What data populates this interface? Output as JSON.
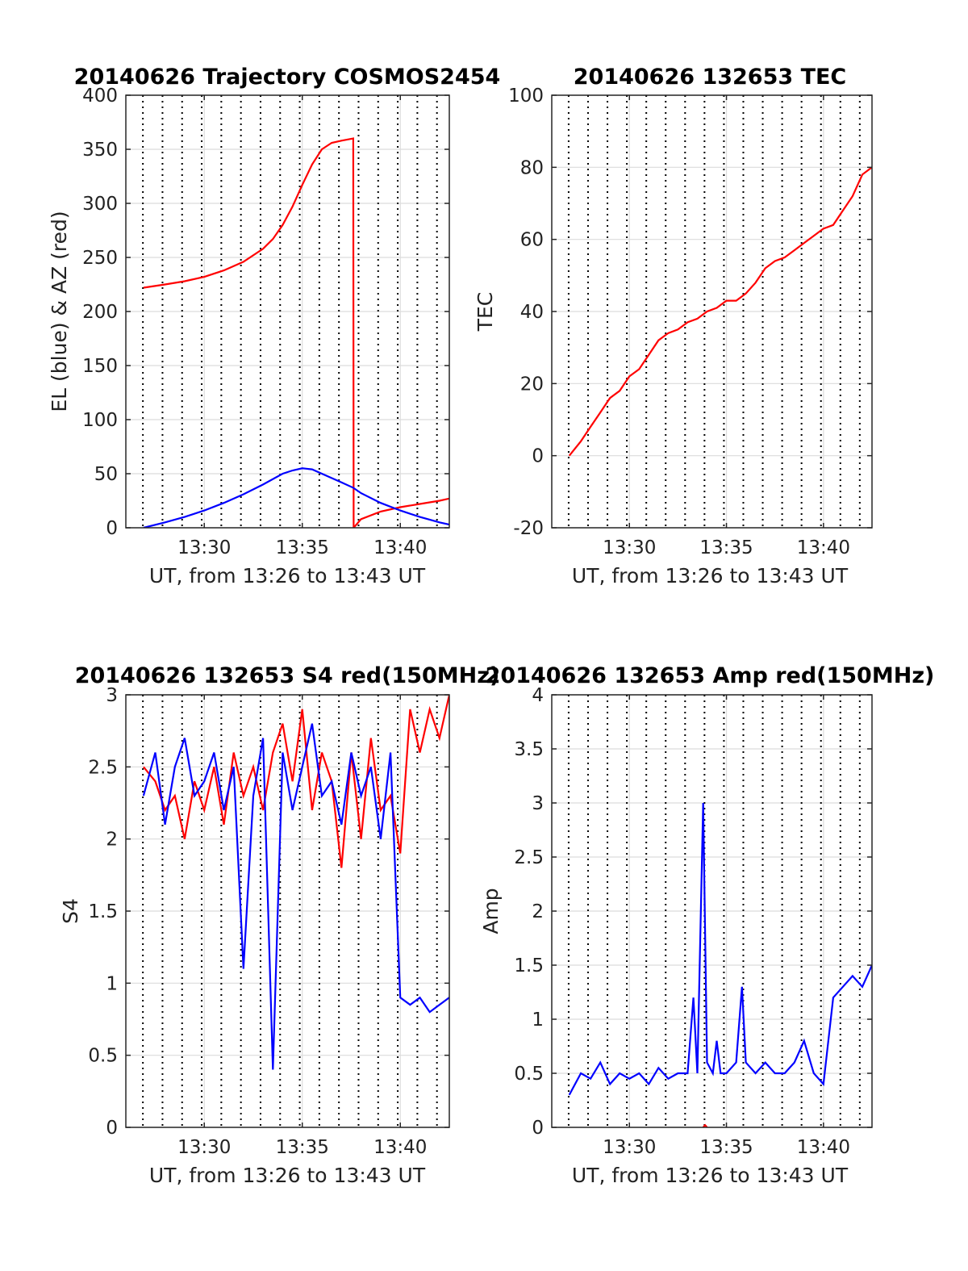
{
  "colors": {
    "red": "#ff0000",
    "blue": "#0000ff",
    "grid": "#dcdcdc",
    "vgrid": "#000000",
    "axis": "#262626"
  },
  "chart_data": [
    {
      "type": "line",
      "title": "20140626 Trajectory COSMOS2454",
      "xlabel": "UT, from 13:26 to 13:43 UT",
      "ylabel": "EL (blue) & AZ (red)",
      "xlim": [
        13.0,
        29.5
      ],
      "ylim": [
        0,
        400
      ],
      "xticks": [
        {
          "value": 17,
          "label": "13:30"
        },
        {
          "value": 22,
          "label": "13:35"
        },
        {
          "value": 27,
          "label": "13:40"
        }
      ],
      "yticks": [
        {
          "value": 0,
          "label": "0"
        },
        {
          "value": 50,
          "label": "50"
        },
        {
          "value": 100,
          "label": "100"
        },
        {
          "value": 150,
          "label": "150"
        },
        {
          "value": 200,
          "label": "200"
        },
        {
          "value": 250,
          "label": "250"
        },
        {
          "value": 300,
          "label": "300"
        },
        {
          "value": 350,
          "label": "350"
        },
        {
          "value": 400,
          "label": "400"
        }
      ],
      "grid": true,
      "minute_lines": [
        13.87,
        14.87,
        15.87,
        16.87,
        17.87,
        18.87,
        19.87,
        20.87,
        21.87,
        22.87,
        23.87,
        24.87,
        25.87,
        26.87,
        27.87,
        28.87
      ],
      "series": [
        {
          "color": "red",
          "x": [
            13.9,
            15,
            16,
            17,
            18,
            19,
            20,
            20.5,
            21,
            21.5,
            22,
            22.5,
            23,
            23.5,
            24,
            24.6,
            24.62,
            25,
            26,
            27,
            28,
            29,
            29.5
          ],
          "y": [
            222,
            225,
            228,
            232,
            238,
            246,
            258,
            267,
            280,
            297,
            317,
            336,
            350,
            356,
            358,
            360,
            0,
            8,
            15,
            19,
            22,
            25,
            27
          ]
        },
        {
          "color": "blue",
          "x": [
            13.9,
            15,
            16,
            17,
            18,
            19,
            20,
            21,
            21.5,
            22,
            22.5,
            23,
            24,
            24.6,
            25,
            26,
            27,
            28,
            29,
            29.5
          ],
          "y": [
            0,
            5,
            10,
            16,
            23,
            31,
            40,
            50,
            53,
            55,
            54,
            50,
            42,
            37,
            32,
            23,
            16,
            10,
            5,
            3
          ]
        }
      ]
    },
    {
      "type": "line",
      "title": "20140626 132653 TEC",
      "xlabel": "UT, from 13:26 to 13:43 UT",
      "ylabel": "TEC",
      "xlim": [
        13.0,
        29.5
      ],
      "ylim": [
        -20,
        100
      ],
      "xticks": [
        {
          "value": 17,
          "label": "13:30"
        },
        {
          "value": 22,
          "label": "13:35"
        },
        {
          "value": 27,
          "label": "13:40"
        }
      ],
      "yticks": [
        {
          "value": -20,
          "label": "-20"
        },
        {
          "value": 0,
          "label": "0"
        },
        {
          "value": 20,
          "label": "20"
        },
        {
          "value": 40,
          "label": "40"
        },
        {
          "value": 60,
          "label": "60"
        },
        {
          "value": 80,
          "label": "80"
        },
        {
          "value": 100,
          "label": "100"
        }
      ],
      "grid": true,
      "minute_lines": [
        13.87,
        14.87,
        15.87,
        16.87,
        17.87,
        18.87,
        19.87,
        20.87,
        21.87,
        22.87,
        23.87,
        24.87,
        25.87,
        26.87,
        27.87,
        28.87
      ],
      "series": [
        {
          "color": "red",
          "x": [
            13.9,
            14.5,
            15,
            15.5,
            16,
            16.5,
            17,
            17.5,
            18,
            18.5,
            19,
            19.5,
            20,
            20.5,
            21,
            21.5,
            22,
            22.5,
            23,
            23.5,
            24,
            24.5,
            25,
            25.5,
            26,
            26.5,
            27,
            27.5,
            28,
            28.5,
            29,
            29.5
          ],
          "y": [
            0,
            4,
            8,
            12,
            16,
            18,
            22,
            24,
            28,
            32,
            34,
            35,
            37,
            38,
            40,
            41,
            43,
            43,
            45,
            48,
            52,
            54,
            55,
            57,
            59,
            61,
            63,
            64,
            68,
            72,
            78,
            80
          ]
        }
      ]
    },
    {
      "type": "line",
      "title": "20140626 132653 S4 red(150MHz)",
      "xlabel": "UT, from 13:26 to 13:43 UT",
      "ylabel": "S4",
      "xlim": [
        13.0,
        29.5
      ],
      "ylim": [
        0,
        3
      ],
      "xticks": [
        {
          "value": 17,
          "label": "13:30"
        },
        {
          "value": 22,
          "label": "13:35"
        },
        {
          "value": 27,
          "label": "13:40"
        }
      ],
      "yticks": [
        {
          "value": 0,
          "label": "0"
        },
        {
          "value": 0.5,
          "label": "0.5"
        },
        {
          "value": 1,
          "label": "1"
        },
        {
          "value": 1.5,
          "label": "1.5"
        },
        {
          "value": 2,
          "label": "2"
        },
        {
          "value": 2.5,
          "label": "2.5"
        },
        {
          "value": 3,
          "label": "3"
        }
      ],
      "grid": true,
      "minute_lines": [
        13.87,
        14.87,
        15.87,
        16.87,
        17.87,
        18.87,
        19.87,
        20.87,
        21.87,
        22.87,
        23.87,
        24.87,
        25.87,
        26.87,
        27.87,
        28.87
      ],
      "series": [
        {
          "color": "red",
          "x": [
            13.9,
            14.5,
            15,
            15.5,
            16,
            16.5,
            17,
            17.5,
            18,
            18.5,
            19,
            19.5,
            20,
            20.5,
            21,
            21.5,
            22,
            22.5,
            23,
            23.5,
            24,
            24.5,
            25,
            25.5,
            26,
            26.5,
            27,
            27.5,
            28,
            28.5,
            29,
            29.5
          ],
          "y": [
            2.5,
            2.4,
            2.2,
            2.3,
            2.0,
            2.4,
            2.2,
            2.5,
            2.1,
            2.6,
            2.3,
            2.5,
            2.2,
            2.6,
            2.8,
            2.4,
            2.9,
            2.2,
            2.6,
            2.4,
            1.8,
            2.6,
            2.0,
            2.7,
            2.2,
            2.3,
            1.9,
            2.9,
            2.6,
            2.9,
            2.7,
            3.0
          ]
        },
        {
          "color": "blue",
          "x": [
            13.9,
            14.5,
            15,
            15.5,
            16,
            16.5,
            17,
            17.5,
            18,
            18.5,
            19,
            19.5,
            20,
            20.5,
            21,
            21.5,
            22,
            22.5,
            23,
            23.5,
            24,
            24.5,
            25,
            25.5,
            26,
            26.5,
            27,
            27.5,
            28,
            28.5,
            29,
            29.5
          ],
          "y": [
            2.3,
            2.6,
            2.1,
            2.5,
            2.7,
            2.3,
            2.4,
            2.6,
            2.2,
            2.5,
            1.1,
            2.3,
            2.7,
            0.4,
            2.6,
            2.2,
            2.5,
            2.8,
            2.3,
            2.4,
            2.1,
            2.6,
            2.3,
            2.5,
            2.0,
            2.6,
            0.9,
            0.85,
            0.9,
            0.8,
            0.85,
            0.9
          ]
        }
      ]
    },
    {
      "type": "line",
      "title": "20140626 132653 Amp red(150MHz)",
      "xlabel": "UT, from 13:26 to 13:43 UT",
      "ylabel": "Amp",
      "xlim": [
        13.0,
        29.5
      ],
      "ylim": [
        0,
        4
      ],
      "xticks": [
        {
          "value": 17,
          "label": "13:30"
        },
        {
          "value": 22,
          "label": "13:35"
        },
        {
          "value": 27,
          "label": "13:40"
        }
      ],
      "yticks": [
        {
          "value": 0,
          "label": "0"
        },
        {
          "value": 0.5,
          "label": "0.5"
        },
        {
          "value": 1,
          "label": "1"
        },
        {
          "value": 1.5,
          "label": "1.5"
        },
        {
          "value": 2,
          "label": "2"
        },
        {
          "value": 2.5,
          "label": "2.5"
        },
        {
          "value": 3,
          "label": "3"
        },
        {
          "value": 3.5,
          "label": "3.5"
        },
        {
          "value": 4,
          "label": "4"
        }
      ],
      "grid": true,
      "minute_lines": [
        13.87,
        14.87,
        15.87,
        16.87,
        17.87,
        18.87,
        19.87,
        20.87,
        21.87,
        22.87,
        23.87,
        24.87,
        25.87,
        26.87,
        27.87,
        28.87
      ],
      "series": [
        {
          "color": "blue",
          "x": [
            13.9,
            14.5,
            15,
            15.5,
            16,
            16.5,
            17,
            17.5,
            18,
            18.5,
            19,
            19.5,
            20,
            20.3,
            20.5,
            20.8,
            21,
            21.3,
            21.5,
            21.7,
            22,
            22.5,
            22.8,
            23,
            23.5,
            24,
            24.5,
            25,
            25.5,
            26,
            26.5,
            27,
            27.5,
            28,
            28.5,
            29,
            29.5
          ],
          "y": [
            0.3,
            0.5,
            0.45,
            0.6,
            0.4,
            0.5,
            0.45,
            0.5,
            0.4,
            0.55,
            0.45,
            0.5,
            0.5,
            1.2,
            0.5,
            3.0,
            0.6,
            0.5,
            0.8,
            0.5,
            0.5,
            0.6,
            1.3,
            0.6,
            0.5,
            0.6,
            0.5,
            0.5,
            0.6,
            0.8,
            0.5,
            0.4,
            1.2,
            1.3,
            1.4,
            1.3,
            1.5
          ]
        },
        {
          "color": "red",
          "x": [
            20.8,
            20.9,
            21.0
          ],
          "y": [
            0.0,
            0.02,
            0.0
          ]
        }
      ]
    }
  ]
}
